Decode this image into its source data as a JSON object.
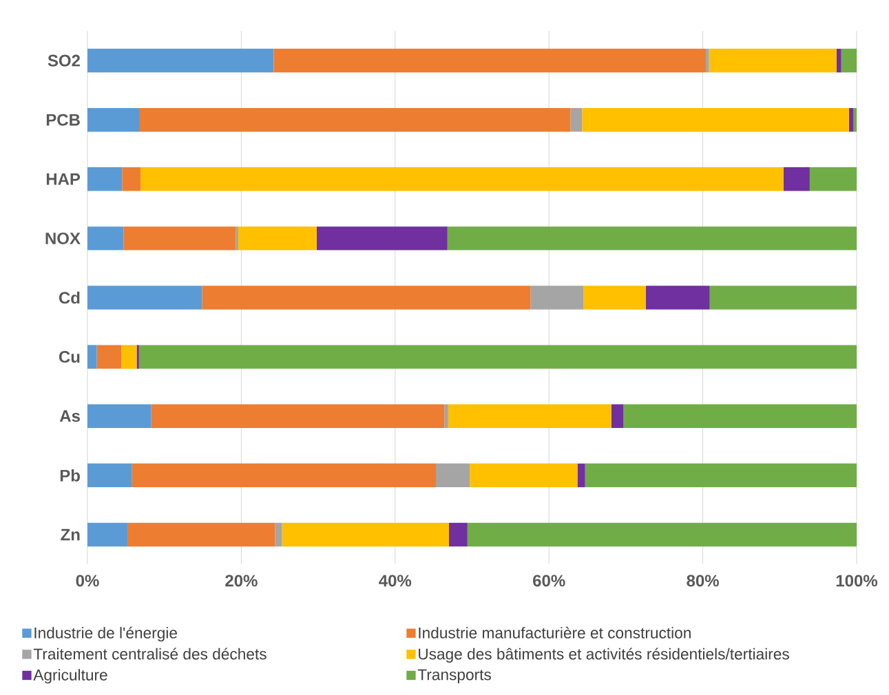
{
  "chart_data": {
    "type": "bar",
    "orientation": "horizontal",
    "stacked": true,
    "categories": [
      "SO2",
      "PCB",
      "HAP",
      "NOX",
      "Cd",
      "Cu",
      "As",
      "Pb",
      "Zn"
    ],
    "series": [
      {
        "name": "Industrie de l'énergie",
        "color": "#5b9bd5",
        "values": [
          24.2,
          6.8,
          4.5,
          4.7,
          14.9,
          1.2,
          8.3,
          5.8,
          5.2
        ]
      },
      {
        "name": "Industrie manufacturière et construction",
        "color": "#ed7d31",
        "values": [
          56.2,
          56.0,
          2.4,
          14.6,
          42.7,
          3.2,
          38.1,
          39.5,
          19.2
        ]
      },
      {
        "name": "Traitement centralisé des déchets",
        "color": "#a5a5a5",
        "values": [
          0.4,
          1.5,
          0,
          0.3,
          6.9,
          0,
          0.5,
          4.4,
          0.9
        ]
      },
      {
        "name": "Usage des bâtiments et activités résidentiels/tertiaires",
        "color": "#ffc000",
        "values": [
          16.6,
          34.7,
          83.6,
          10.2,
          8.1,
          2.0,
          21.2,
          14.0,
          21.7
        ]
      },
      {
        "name": "Agriculture",
        "color": "#7030a0",
        "values": [
          0.6,
          0.6,
          3.4,
          17.0,
          8.3,
          0.3,
          1.6,
          1.0,
          2.4
        ]
      },
      {
        "name": "Transports",
        "color": "#70ad47",
        "values": [
          2.0,
          0.4,
          6.1,
          53.2,
          19.1,
          93.3,
          30.3,
          35.3,
          50.6
        ]
      }
    ],
    "xlim": [
      0,
      100
    ],
    "xticks": [
      {
        "value": 0,
        "label": "0%"
      },
      {
        "value": 20,
        "label": "20%"
      },
      {
        "value": 40,
        "label": "40%"
      },
      {
        "value": 60,
        "label": "60%"
      },
      {
        "value": 80,
        "label": "80%"
      },
      {
        "value": 100,
        "label": "100%"
      }
    ],
    "grid": "x",
    "legend": "bottom"
  }
}
